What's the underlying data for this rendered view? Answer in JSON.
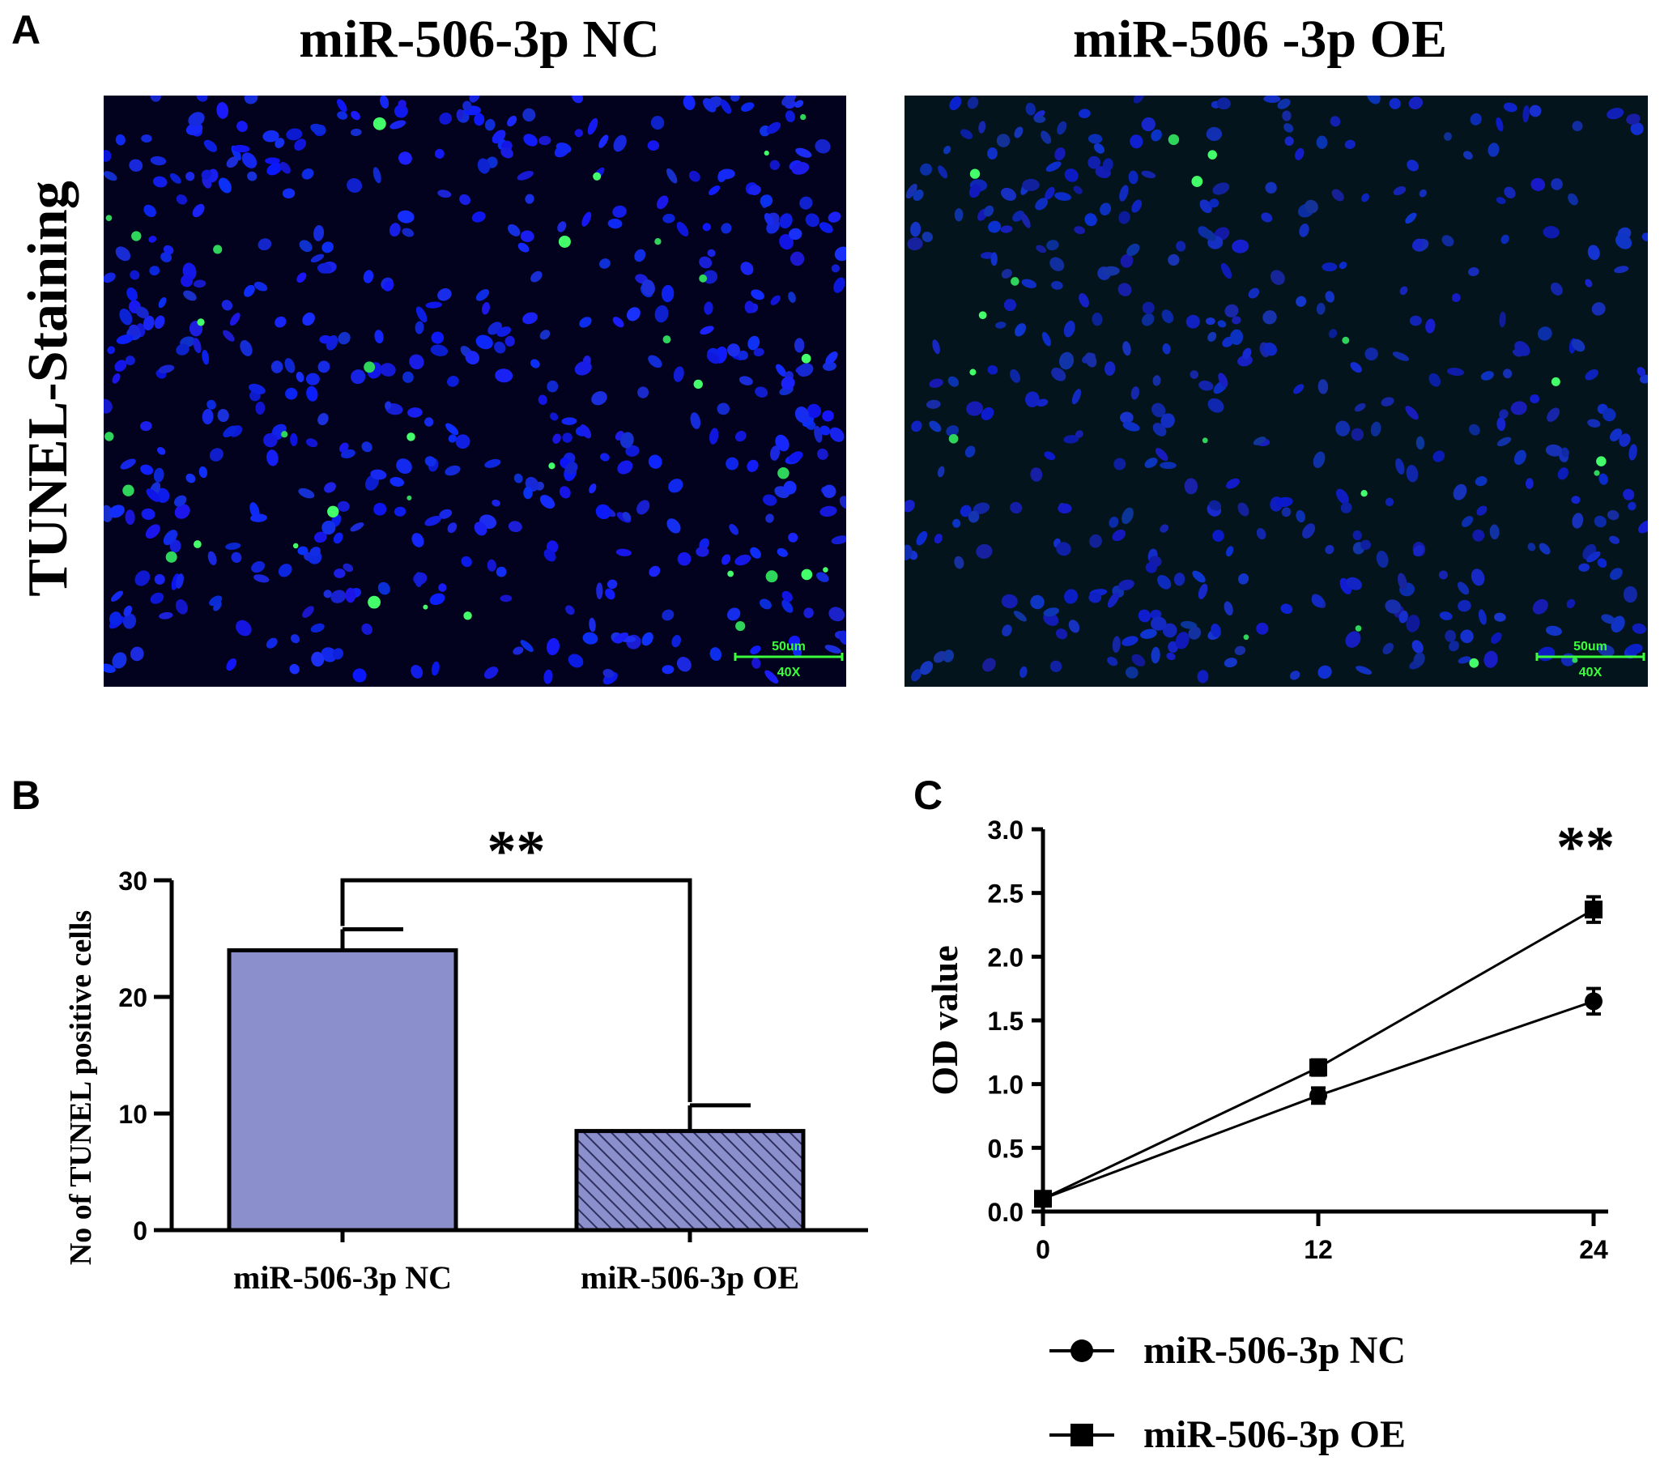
{
  "panels": {
    "a": {
      "letter": "A",
      "row_label": "TUNEL-Staining",
      "images": [
        {
          "title": "miR-506-3p NC",
          "scale_label": "50um",
          "magnification": "40X",
          "tint": "#02021e"
        },
        {
          "title": "miR-506 -3p OE",
          "scale_label": "50um",
          "magnification": "40X",
          "tint": "#03141c"
        }
      ]
    },
    "b": {
      "letter": "B"
    },
    "c": {
      "letter": "C"
    }
  },
  "chart_data": [
    {
      "type": "bar",
      "panel": "B",
      "categories": [
        "miR-506-3p NC",
        "miR-506-3p OE"
      ],
      "values": [
        24,
        8.5
      ],
      "errors": [
        1.8,
        2.2
      ],
      "ylabel": "No of TUNEL positive cells",
      "ylim": [
        0,
        30
      ],
      "yticks": [
        "0",
        "10",
        "20",
        "30"
      ],
      "significance": "**",
      "colors": {
        "bar": "#8b8fcc",
        "hatch": "#2f2f5e"
      },
      "fills": [
        "solid",
        "hatched"
      ]
    },
    {
      "type": "line",
      "panel": "C",
      "x": [
        0,
        12,
        24
      ],
      "xticks": [
        "0",
        "12",
        "24"
      ],
      "ylabel": "OD value",
      "ylim": [
        0,
        3.0
      ],
      "yticks": [
        "0.0",
        "0.5",
        "1.0",
        "1.5",
        "2.0",
        "2.5",
        "3.0"
      ],
      "significance": "**",
      "series": [
        {
          "name": "miR-506-3p NC",
          "marker": "circle",
          "values": [
            0.1,
            0.91,
            1.65
          ],
          "errors": [
            0.02,
            0.06,
            0.1
          ]
        },
        {
          "name": "miR-506-3p OE",
          "marker": "square",
          "values": [
            0.1,
            1.13,
            2.37
          ],
          "errors": [
            0.02,
            0.06,
            0.1
          ]
        }
      ],
      "legend": "bottom"
    }
  ]
}
